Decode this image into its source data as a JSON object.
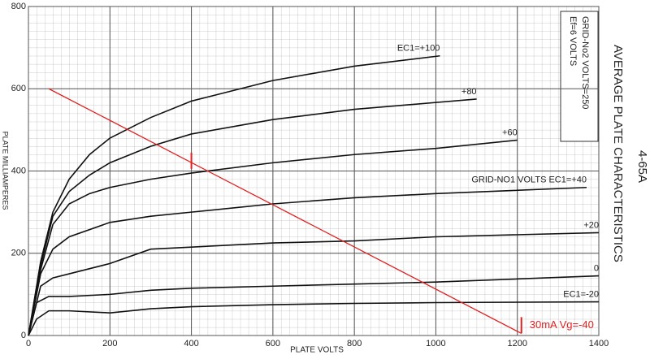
{
  "chart_data": {
    "type": "line",
    "title": "AVERAGE PLATE CHARACTERISTICS",
    "subtitle": "4-65A",
    "x_label": "PLATE VOLTS",
    "y_label": "PLATE MILLIAMPERES",
    "conditions": [
      "Ef=6 VOLTS",
      "GRID-No2 VOLTS=250"
    ],
    "xlim": [
      0,
      1400
    ],
    "ylim": [
      0,
      800
    ],
    "xticks": [
      0,
      200,
      400,
      600,
      800,
      1000,
      1200,
      1400
    ],
    "yticks": [
      0,
      200,
      400,
      600,
      800
    ],
    "grid": true,
    "series": [
      {
        "name": "EC1=+100",
        "color": "#111111",
        "x": [
          0,
          30,
          60,
          100,
          150,
          200,
          300,
          400,
          600,
          800,
          1010
        ],
        "values": [
          0,
          180,
          300,
          380,
          440,
          480,
          530,
          570,
          620,
          655,
          680
        ]
      },
      {
        "name": "+80",
        "color": "#111111",
        "x": [
          0,
          30,
          60,
          100,
          150,
          200,
          300,
          400,
          600,
          800,
          1100
        ],
        "values": [
          0,
          170,
          290,
          350,
          390,
          420,
          460,
          490,
          525,
          550,
          575
        ]
      },
      {
        "name": "+60",
        "color": "#111111",
        "x": [
          0,
          30,
          60,
          100,
          150,
          200,
          300,
          400,
          600,
          800,
          1000,
          1200
        ],
        "values": [
          0,
          160,
          270,
          320,
          345,
          360,
          380,
          395,
          420,
          440,
          455,
          475
        ]
      },
      {
        "name": "GRID-NO1 VOLTS EC1=+40",
        "color": "#111111",
        "x": [
          0,
          30,
          60,
          100,
          200,
          300,
          400,
          600,
          800,
          1000,
          1370
        ],
        "values": [
          0,
          150,
          210,
          240,
          275,
          290,
          300,
          320,
          335,
          345,
          360
        ]
      },
      {
        "name": "+20",
        "color": "#111111",
        "x": [
          0,
          30,
          60,
          100,
          200,
          300,
          400,
          600,
          800,
          1000,
          1400
        ],
        "values": [
          0,
          120,
          140,
          150,
          175,
          210,
          215,
          225,
          230,
          240,
          250
        ]
      },
      {
        "name": "0",
        "color": "#111111",
        "x": [
          0,
          20,
          50,
          100,
          200,
          300,
          400,
          600,
          800,
          1000,
          1400
        ],
        "values": [
          0,
          80,
          95,
          95,
          100,
          110,
          115,
          120,
          125,
          130,
          145
        ]
      },
      {
        "name": "EC1=-20",
        "color": "#111111",
        "x": [
          0,
          20,
          50,
          100,
          200,
          300,
          400,
          600,
          800,
          1000,
          1400
        ],
        "values": [
          0,
          40,
          60,
          60,
          55,
          65,
          70,
          75,
          78,
          80,
          82
        ]
      }
    ],
    "load_line": {
      "color": "#e02020",
      "x": [
        50,
        1210
      ],
      "values": [
        600,
        5
      ]
    },
    "markers": [
      {
        "x": 400,
        "y": 425
      },
      {
        "x": 1210,
        "y": 25
      }
    ],
    "annotation": {
      "text": "30mA  Vg=-40",
      "x": 1230,
      "y": 25
    }
  }
}
